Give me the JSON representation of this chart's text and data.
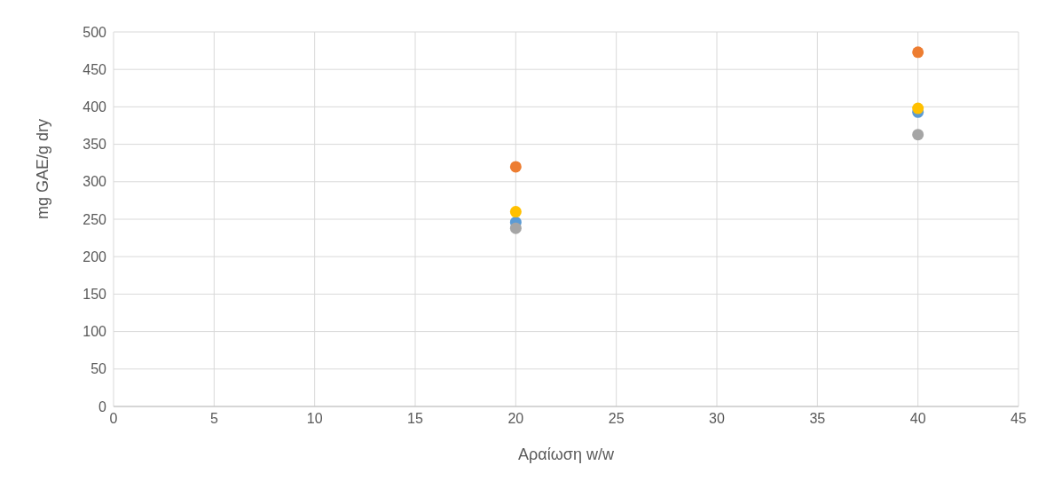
{
  "chart_data": {
    "type": "scatter",
    "xlabel": "Αραίωση w/w",
    "ylabel": "mg GAE/g dry",
    "x": [
      20,
      40
    ],
    "xlim": [
      0,
      45
    ],
    "xticks": [
      0,
      5,
      10,
      15,
      20,
      25,
      30,
      35,
      40,
      45
    ],
    "ylim": [
      0,
      500
    ],
    "yticks": [
      0,
      50,
      100,
      150,
      200,
      250,
      300,
      350,
      400,
      450,
      500
    ],
    "grid": true,
    "marker": "circle",
    "series": [
      {
        "color": "#5b9bd5",
        "values": [
          246,
          393
        ]
      },
      {
        "color": "#ed7d31",
        "values": [
          320,
          473
        ]
      },
      {
        "color": "#a5a5a5",
        "values": [
          238,
          363
        ]
      },
      {
        "color": "#ffc000",
        "values": [
          260,
          398
        ]
      }
    ]
  }
}
